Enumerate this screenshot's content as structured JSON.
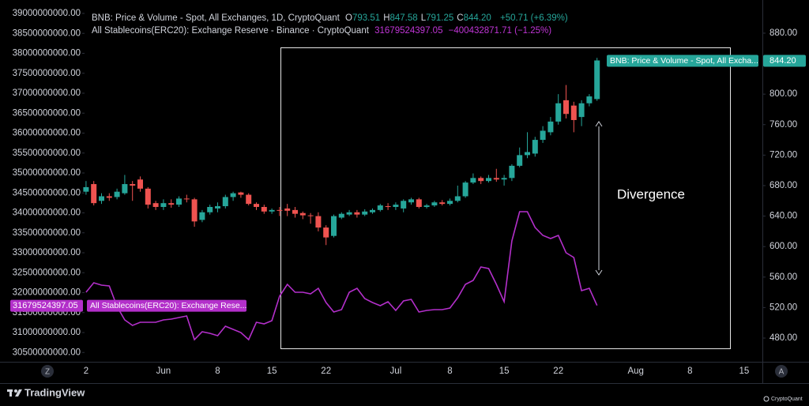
{
  "header": {
    "series1": "BNB: Price & Volume - Spot, All Exchanges, 1D, CryptoQuant",
    "ohlc_keys": [
      "O",
      "H",
      "L",
      "C"
    ],
    "change1": "+50.71 (+6.39%)",
    "series2": "All Stablecoins(ERC20): Exchange Reserve - Binance · CryptoQuant",
    "change2": "−400432871.71 (−1.25%)"
  },
  "chart_data": {
    "type": "candlestick",
    "categories": [
      "2",
      null,
      null,
      null,
      null,
      null,
      null,
      null,
      null,
      null,
      "Jun",
      null,
      null,
      null,
      null,
      null,
      null,
      "8",
      null,
      null,
      null,
      null,
      null,
      null,
      "15",
      null,
      null,
      null,
      null,
      null,
      null,
      "22",
      null,
      null,
      null,
      null,
      null,
      null,
      null,
      null,
      "Jul",
      null,
      null,
      null,
      null,
      null,
      null,
      "8",
      null,
      null,
      null,
      null,
      null,
      null,
      "15",
      null,
      null,
      null,
      null,
      null,
      null,
      "22",
      null,
      null,
      null,
      null,
      null,
      null,
      null,
      null,
      null,
      "Aug",
      null,
      null,
      null,
      null,
      null,
      null,
      "8",
      null,
      null,
      null,
      null,
      null,
      null,
      "15",
      null,
      null
    ],
    "series": [
      {
        "name": "BNB: Price & Volume - Spot, All Excha...",
        "type": "candlestick",
        "axis": "y2",
        "up_color": "#26a69a",
        "down_color": "#ef5350",
        "last_label": "844.20",
        "open": [
          672,
          682,
          660,
          666,
          665,
          670,
          682,
          688,
          676,
          657,
          652,
          657,
          655,
          663,
          662,
          635,
          645,
          650,
          653,
          665,
          671,
          668,
          656,
          652,
          646,
          648,
          650,
          648,
          644,
          641,
          640,
          625,
          614,
          638,
          642,
          645,
          642,
          645,
          648,
          653,
          652,
          650,
          658,
          662,
          652,
          654,
          658,
          656,
          660,
          666,
          684,
          690,
          686,
          690,
          688,
          690,
          706,
          720,
          722,
          740,
          750,
          764,
          792,
          785,
          770,
          788,
          793.51,
          null,
          null,
          null,
          null,
          null,
          null,
          null,
          null,
          null,
          null,
          null,
          null,
          null,
          null,
          null,
          null,
          null,
          null,
          null,
          null,
          null
        ],
        "high": [
          686,
          686,
          670,
          670,
          676,
          694,
          686,
          692,
          678,
          660,
          662,
          662,
          666,
          668,
          664,
          648,
          655,
          658,
          668,
          672,
          672,
          670,
          658,
          655,
          650,
          652,
          656,
          652,
          646,
          644,
          645,
          628,
          642,
          645,
          648,
          648,
          649,
          650,
          656,
          657,
          658,
          662,
          664,
          664,
          656,
          660,
          661,
          663,
          680,
          686,
          696,
          692,
          694,
          702,
          694,
          708,
          730,
          750,
          744,
          758,
          770,
          800,
          812,
          790,
          792,
          800,
          847.58,
          null,
          null,
          null,
          null,
          null,
          null,
          null,
          null,
          null,
          null,
          null,
          null,
          null,
          null,
          null,
          null,
          null,
          null,
          null,
          null,
          null
        ],
        "low": [
          668,
          654,
          656,
          660,
          662,
          668,
          660,
          672,
          650,
          648,
          648,
          651,
          652,
          658,
          626,
          632,
          642,
          645,
          650,
          660,
          664,
          654,
          648,
          643,
          643,
          640,
          640,
          638,
          636,
          630,
          620,
          602,
          612,
          636,
          640,
          638,
          640,
          643,
          646,
          648,
          648,
          645,
          655,
          650,
          650,
          652,
          654,
          654,
          658,
          664,
          682,
          682,
          684,
          685,
          680,
          686,
          704,
          716,
          718,
          736,
          746,
          760,
          768,
          750,
          758,
          784,
          791.25,
          null,
          null,
          null,
          null,
          null,
          null,
          null,
          null,
          null,
          null,
          null,
          null,
          null,
          null,
          null,
          null,
          null,
          null,
          null,
          null,
          null
        ],
        "close": [
          678,
          657,
          666,
          664,
          672,
          682,
          680,
          676,
          655,
          652,
          657,
          655,
          663,
          662,
          633,
          645,
          652,
          653,
          665,
          670,
          668,
          656,
          652,
          646,
          648,
          647,
          647,
          643,
          641,
          640,
          625,
          612,
          640,
          643,
          645,
          642,
          646,
          648,
          654,
          652,
          655,
          660,
          662,
          652,
          654,
          658,
          656,
          660,
          666,
          684,
          690,
          686,
          690,
          688,
          690,
          706,
          720,
          724,
          740,
          752,
          764,
          788,
          774,
          766,
          788,
          797,
          844.2,
          null,
          null,
          null,
          null,
          null,
          null,
          null,
          null,
          null,
          null,
          null,
          null,
          null,
          null,
          null,
          null,
          null,
          null,
          null,
          null,
          null
        ]
      },
      {
        "name": "All Stablecoins(ERC20): Exchange Rese...",
        "type": "line",
        "axis": "y",
        "color": "#b32fca",
        "values": [
          32010000000,
          32248000000,
          32188000000,
          32168000000,
          31653000000,
          31317000000,
          31178000000,
          31257000000,
          31257000000,
          31257000000,
          31317000000,
          31337000000,
          31376000000,
          31416000000,
          30822000000,
          31020000000,
          30980000000,
          30921000000,
          31158000000,
          31079000000,
          31000000000,
          30822000000,
          31257000000,
          31218000000,
          31297000000,
          31911000000,
          32208000000,
          32010000000,
          32010000000,
          31970000000,
          32109000000,
          31752000000,
          31515000000,
          31574000000,
          32010000000,
          32109000000,
          31851000000,
          31752000000,
          31673000000,
          31772000000,
          31554000000,
          31792000000,
          31832000000,
          31515000000,
          31554000000,
          31574000000,
          31574000000,
          31614000000,
          31871000000,
          32208000000,
          32307000000,
          32644000000,
          32604000000,
          32208000000,
          31772000000,
          33297000000,
          34030000000,
          34030000000,
          33634000000,
          33436000000,
          33356000000,
          33436000000,
          33000000000,
          32881000000,
          32050000000,
          32109000000,
          31679524397.05,
          null,
          null,
          null,
          null,
          null,
          null,
          null,
          null,
          null,
          null,
          null,
          null,
          null,
          null,
          null,
          null,
          null,
          null,
          null,
          null,
          null
        ]
      }
    ],
    "ylim": [
      30267000000,
      39237600000
    ],
    "yticks": [
      {
        "value": 30500000000,
        "label": "30500000000.00"
      },
      {
        "value": 31000000000,
        "label": "31000000000.00"
      },
      {
        "value": 31500000000,
        "label": "31500000000.00"
      },
      {
        "value": 32000000000,
        "label": "32000000000.00"
      },
      {
        "value": 32500000000,
        "label": "32500000000.00"
      },
      {
        "value": 33000000000,
        "label": "33000000000.00"
      },
      {
        "value": 33500000000,
        "label": "33500000000.00"
      },
      {
        "value": 34000000000,
        "label": "34000000000.00"
      },
      {
        "value": 34500000000,
        "label": "34500000000.00"
      },
      {
        "value": 35000000000,
        "label": "35000000000.00"
      },
      {
        "value": 35500000000,
        "label": "35500000000.00"
      },
      {
        "value": 36000000000,
        "label": "36000000000.00"
      },
      {
        "value": 36500000000,
        "label": "36500000000.00"
      },
      {
        "value": 37000000000,
        "label": "37000000000.00"
      },
      {
        "value": 37500000000,
        "label": "37500000000.00"
      },
      {
        "value": 38000000000,
        "label": "38000000000.00"
      },
      {
        "value": 38500000000,
        "label": "38500000000.00"
      },
      {
        "value": 39000000000,
        "label": "39000000000.00"
      }
    ],
    "y2lim": [
      448.9,
      918.3
    ],
    "y2ticks": [
      {
        "value": 480,
        "label": "480.00"
      },
      {
        "value": 520,
        "label": "520.00"
      },
      {
        "value": 560,
        "label": "560.00"
      },
      {
        "value": 600,
        "label": "600.00"
      },
      {
        "value": 640,
        "label": "640.00"
      },
      {
        "value": 680,
        "label": "680.00"
      },
      {
        "value": 720,
        "label": "720.00"
      },
      {
        "value": 760,
        "label": "760.00"
      },
      {
        "value": 800,
        "label": "800.00"
      },
      {
        "value": 840,
        "label": "840.00"
      },
      {
        "value": 880,
        "label": "880.00"
      }
    ],
    "annotation": "Divergence"
  },
  "toolbar": {
    "left_button": "Z",
    "right_button": "A"
  },
  "branding": {
    "left": "TradingView",
    "right": "CryptoQuant"
  }
}
